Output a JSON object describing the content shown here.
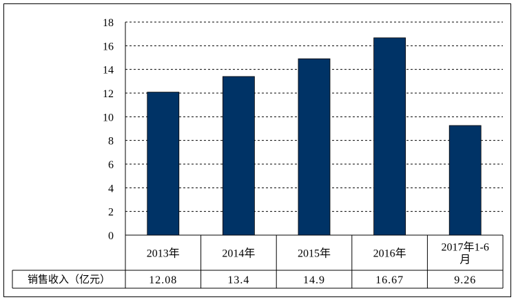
{
  "chart_data": {
    "type": "bar",
    "categories": [
      "2013年",
      "2014年",
      "2015年",
      "2016年",
      "2017年1-6月"
    ],
    "category_lines": [
      [
        "2013年"
      ],
      [
        "2014年"
      ],
      [
        "2015年"
      ],
      [
        "2016年"
      ],
      [
        "2017年1-6",
        "月"
      ]
    ],
    "series": [
      {
        "name": "销售收入（亿元）",
        "values": [
          12.08,
          13.4,
          14.9,
          16.67,
          9.26
        ],
        "labels": [
          "12.08",
          "13.4",
          "14.9",
          "16.67",
          "9.26"
        ]
      }
    ],
    "ylim": [
      0,
      18
    ],
    "y_ticks": [
      0,
      2,
      4,
      6,
      8,
      10,
      12,
      14,
      16,
      18
    ],
    "bar_color": "#003366",
    "grid": "dashed horizontal",
    "data_table": true
  }
}
